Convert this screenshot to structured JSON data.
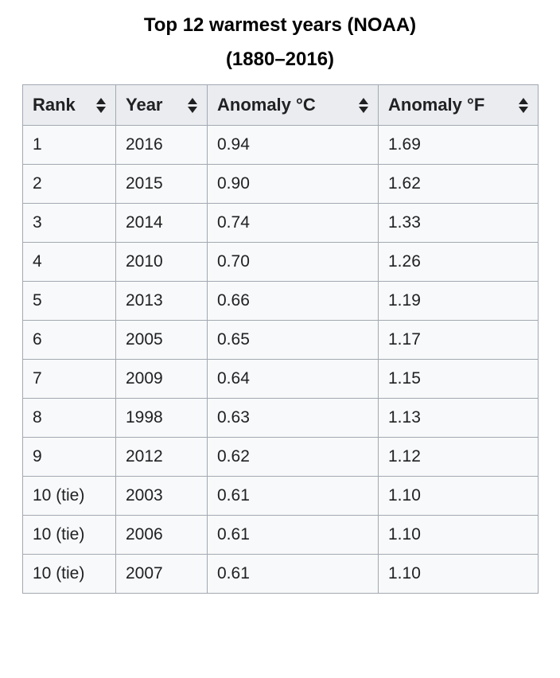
{
  "caption": {
    "line1": "Top 12 warmest years (NOAA)",
    "line2": "(1880–2016)"
  },
  "icons": {
    "sort_icon": "up-down-triangles"
  },
  "colors": {
    "header_bg": "#eaecf0",
    "row_bg": "#f8f9fa",
    "border": "#a2a9b1",
    "text": "#202122"
  },
  "chart_data": {
    "type": "table",
    "title": "Top 12 warmest years (NOAA)",
    "subtitle": "(1880–2016)",
    "columns": [
      "Rank",
      "Year",
      "Anomaly °C",
      "Anomaly °F"
    ],
    "rows": [
      [
        "1",
        "2016",
        "0.94",
        "1.69"
      ],
      [
        "2",
        "2015",
        "0.90",
        "1.62"
      ],
      [
        "3",
        "2014",
        "0.74",
        "1.33"
      ],
      [
        "4",
        "2010",
        "0.70",
        "1.26"
      ],
      [
        "5",
        "2013",
        "0.66",
        "1.19"
      ],
      [
        "6",
        "2005",
        "0.65",
        "1.17"
      ],
      [
        "7",
        "2009",
        "0.64",
        "1.15"
      ],
      [
        "8",
        "1998",
        "0.63",
        "1.13"
      ],
      [
        "9",
        "2012",
        "0.62",
        "1.12"
      ],
      [
        "10 (tie)",
        "2003",
        "0.61",
        "1.10"
      ],
      [
        "10 (tie)",
        "2006",
        "0.61",
        "1.10"
      ],
      [
        "10 (tie)",
        "2007",
        "0.61",
        "1.10"
      ]
    ]
  }
}
